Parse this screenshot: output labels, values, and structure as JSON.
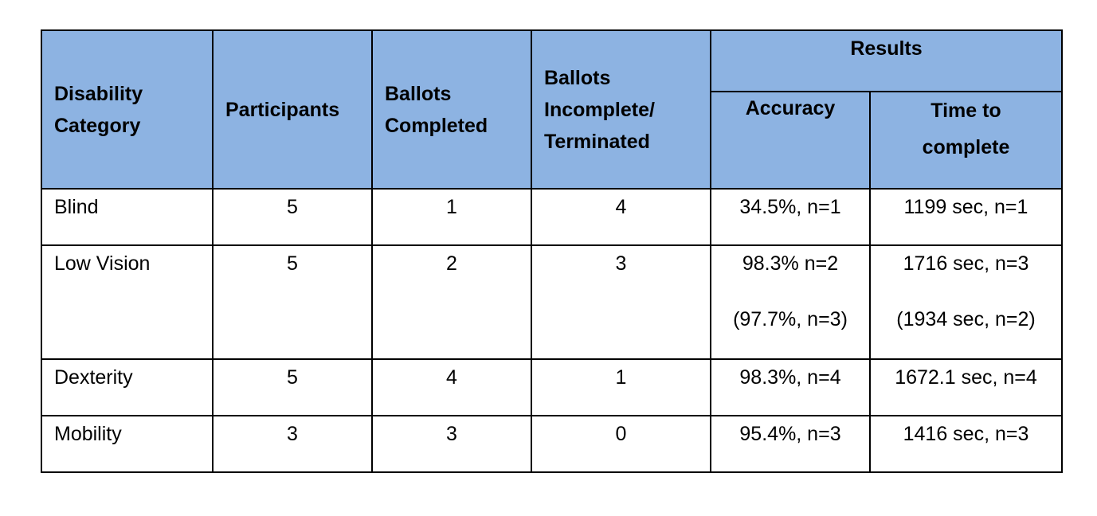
{
  "table": {
    "headers": {
      "disability_category": [
        "Disability",
        "Category"
      ],
      "participants": "Participants",
      "ballots_completed": [
        "Ballots",
        "Completed"
      ],
      "ballots_incomplete": [
        "Ballots",
        "Incomplete/",
        "Terminated"
      ],
      "results": "Results",
      "accuracy": "Accuracy",
      "time_to_complete": [
        "Time to",
        "complete"
      ]
    },
    "rows": [
      {
        "category": "Blind",
        "participants": "5",
        "completed": "1",
        "incomplete": "4",
        "accuracy": [
          "34.5%, n=1"
        ],
        "time": [
          "1199 sec, n=1"
        ]
      },
      {
        "category": "Low Vision",
        "participants": "5",
        "completed": "2",
        "incomplete": "3",
        "accuracy": [
          "98.3% n=2",
          "(97.7%, n=3)"
        ],
        "time": [
          "1716 sec, n=3",
          "(1934 sec, n=2)"
        ]
      },
      {
        "category": "Dexterity",
        "participants": "5",
        "completed": "4",
        "incomplete": "1",
        "accuracy": [
          "98.3%, n=4"
        ],
        "time": [
          "1672.1 sec, n=4"
        ]
      },
      {
        "category": "Mobility",
        "participants": "3",
        "completed": "3",
        "incomplete": "0",
        "accuracy": [
          "95.4%, n=3"
        ],
        "time": [
          "1416 sec, n=3"
        ]
      }
    ]
  }
}
